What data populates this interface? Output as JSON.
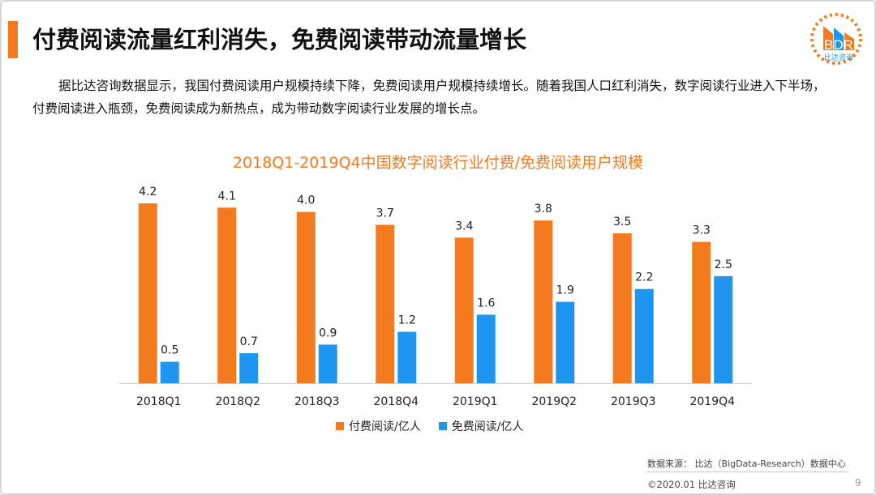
{
  "header": {
    "title": "付费阅读流量红利消失，免费阅读带动流量增长"
  },
  "body": {
    "paragraph": "据比达咨询数据显示，我国付费阅读用户规模持续下降，免费阅读用户规模持续增长。随着我国人口红利消失，数字阅读行业进入下半场，付费阅读进入瓶颈，免费阅读成为新热点，成为带动数字阅读行业发展的增长点。"
  },
  "logo": {
    "text": "BDR",
    "subtext": "比达咨询"
  },
  "chart_data": {
    "type": "bar",
    "title": "2018Q1-2019Q4中国数字阅读行业付费/免费阅读用户规模",
    "categories": [
      "2018Q1",
      "2018Q2",
      "2018Q3",
      "2018Q4",
      "2019Q1",
      "2019Q2",
      "2019Q3",
      "2019Q4"
    ],
    "series": [
      {
        "name": "付费阅读/亿人",
        "color": "#f47a20",
        "values": [
          4.2,
          4.1,
          4.0,
          3.7,
          3.4,
          3.8,
          3.5,
          3.3
        ]
      },
      {
        "name": "免费阅读/亿人",
        "color": "#1e96f0",
        "values": [
          0.5,
          0.7,
          0.9,
          1.2,
          1.6,
          1.9,
          2.2,
          2.5
        ]
      }
    ],
    "ylim": [
      0,
      4.2
    ],
    "grid": false,
    "legend": "bottom"
  },
  "footer": {
    "source": "数据来源： 比达（BigData-Research）数据中心",
    "copyright": "©2020.01  比达咨询",
    "page": "9"
  }
}
